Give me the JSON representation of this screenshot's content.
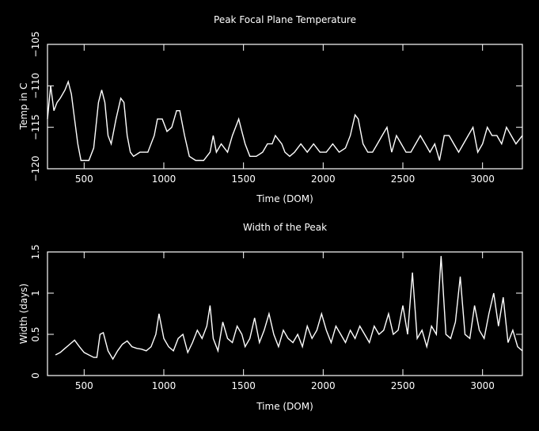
{
  "chart_data": [
    {
      "type": "line",
      "title": "Peak Focal Plane Temperature",
      "xlabel": "Time (DOM)",
      "ylabel": "Temp in C",
      "xlim": [
        270,
        3250
      ],
      "ylim": [
        -120,
        -105
      ],
      "xticks": [
        500,
        1000,
        1500,
        2000,
        2500,
        3000
      ],
      "xtick_labels": [
        "500",
        "1000",
        "1500",
        "2000",
        "2500",
        "3000"
      ],
      "yticks": [
        -120,
        -115,
        -110,
        -105
      ],
      "ytick_labels": [
        "−120",
        "−115",
        "−110",
        "−105"
      ],
      "grid": false,
      "series": [
        {
          "x": [
            270,
            290,
            310,
            330,
            350,
            380,
            400,
            420,
            440,
            460,
            480,
            500,
            530,
            560,
            590,
            610,
            630,
            650,
            670,
            700,
            730,
            750,
            770,
            790,
            810,
            850,
            900,
            940,
            960,
            990,
            1020,
            1050,
            1080,
            1100,
            1130,
            1160,
            1200,
            1250,
            1290,
            1310,
            1330,
            1360,
            1400,
            1430,
            1450,
            1470,
            1490,
            1510,
            1540,
            1580,
            1620,
            1650,
            1680,
            1700,
            1720,
            1740,
            1760,
            1790,
            1820,
            1860,
            1900,
            1940,
            1980,
            2020,
            2060,
            2100,
            2140,
            2170,
            2200,
            2220,
            2250,
            2280,
            2310,
            2340,
            2370,
            2400,
            2430,
            2460,
            2490,
            2520,
            2550,
            2580,
            2610,
            2640,
            2670,
            2700,
            2730,
            2760,
            2790,
            2820,
            2850,
            2880,
            2910,
            2940,
            2970,
            3000,
            3030,
            3060,
            3090,
            3120,
            3150,
            3180,
            3210,
            3250
          ],
          "y": [
            -114,
            -110,
            -113,
            -112,
            -111.5,
            -110.5,
            -109.5,
            -111,
            -114,
            -117,
            -119,
            -119,
            -119,
            -117.5,
            -112,
            -110.5,
            -112,
            -116,
            -117,
            -114,
            -111.5,
            -112,
            -116,
            -118,
            -118.5,
            -118,
            -118,
            -116,
            -114,
            -114,
            -115.5,
            -115,
            -113,
            -113,
            -116,
            -118.5,
            -119,
            -119,
            -118,
            -116,
            -118,
            -117,
            -118,
            -116,
            -115,
            -114,
            -115.5,
            -117,
            -118.5,
            -118.5,
            -118,
            -117,
            -117,
            -116,
            -116.5,
            -117,
            -118,
            -118.5,
            -118,
            -117,
            -118,
            -117,
            -118,
            -118,
            -117,
            -118,
            -117.5,
            -116,
            -113.5,
            -114,
            -117,
            -118,
            -118,
            -117,
            -116,
            -115,
            -118,
            -116,
            -117,
            -118,
            -118,
            -117,
            -116,
            -117,
            -118,
            -117,
            -119,
            -116,
            -116,
            -117,
            -118,
            -117,
            -116,
            -115,
            -118,
            -117,
            -115,
            -116,
            -116,
            -117,
            -115,
            -116,
            -117,
            -116
          ]
        }
      ]
    },
    {
      "type": "line",
      "title": "Width of the Peak",
      "xlabel": "Time (DOM)",
      "ylabel": "Width (days)",
      "xlim": [
        270,
        3250
      ],
      "ylim": [
        0,
        1.5
      ],
      "xticks": [
        500,
        1000,
        1500,
        2000,
        2500,
        3000
      ],
      "xtick_labels": [
        "500",
        "1000",
        "1500",
        "2000",
        "2500",
        "3000"
      ],
      "yticks": [
        0,
        0.5,
        1,
        1.5
      ],
      "ytick_labels": [
        "0",
        "0.5",
        "1",
        "1.5"
      ],
      "grid": false,
      "series": [
        {
          "x": [
            320,
            350,
            380,
            410,
            440,
            470,
            500,
            530,
            560,
            580,
            600,
            620,
            650,
            680,
            710,
            740,
            770,
            800,
            830,
            860,
            890,
            920,
            950,
            970,
            1000,
            1030,
            1060,
            1090,
            1120,
            1150,
            1180,
            1210,
            1240,
            1270,
            1290,
            1310,
            1340,
            1370,
            1400,
            1430,
            1460,
            1490,
            1510,
            1540,
            1570,
            1600,
            1630,
            1660,
            1690,
            1720,
            1750,
            1780,
            1810,
            1840,
            1870,
            1900,
            1930,
            1960,
            1990,
            2020,
            2050,
            2080,
            2110,
            2140,
            2170,
            2200,
            2230,
            2260,
            2290,
            2320,
            2350,
            2380,
            2410,
            2440,
            2470,
            2500,
            2530,
            2560,
            2590,
            2620,
            2650,
            2680,
            2710,
            2740,
            2770,
            2800,
            2830,
            2860,
            2890,
            2920,
            2950,
            2980,
            3010,
            3040,
            3070,
            3100,
            3130,
            3160,
            3190,
            3220,
            3250
          ],
          "y": [
            0.25,
            0.28,
            0.33,
            0.38,
            0.43,
            0.35,
            0.28,
            0.25,
            0.22,
            0.22,
            0.5,
            0.52,
            0.3,
            0.2,
            0.3,
            0.38,
            0.42,
            0.35,
            0.33,
            0.32,
            0.3,
            0.35,
            0.5,
            0.75,
            0.45,
            0.35,
            0.3,
            0.45,
            0.5,
            0.28,
            0.4,
            0.55,
            0.45,
            0.6,
            0.85,
            0.45,
            0.3,
            0.65,
            0.45,
            0.4,
            0.6,
            0.5,
            0.35,
            0.45,
            0.7,
            0.4,
            0.55,
            0.75,
            0.5,
            0.35,
            0.55,
            0.45,
            0.4,
            0.5,
            0.35,
            0.6,
            0.45,
            0.55,
            0.75,
            0.55,
            0.4,
            0.6,
            0.5,
            0.4,
            0.55,
            0.45,
            0.6,
            0.5,
            0.4,
            0.6,
            0.5,
            0.55,
            0.75,
            0.5,
            0.55,
            0.85,
            0.5,
            1.25,
            0.45,
            0.55,
            0.35,
            0.6,
            0.5,
            1.45,
            0.5,
            0.45,
            0.65,
            1.2,
            0.5,
            0.45,
            0.85,
            0.55,
            0.45,
            0.75,
            1.0,
            0.6,
            0.95,
            0.4,
            0.55,
            0.35,
            0.3
          ]
        }
      ]
    }
  ]
}
